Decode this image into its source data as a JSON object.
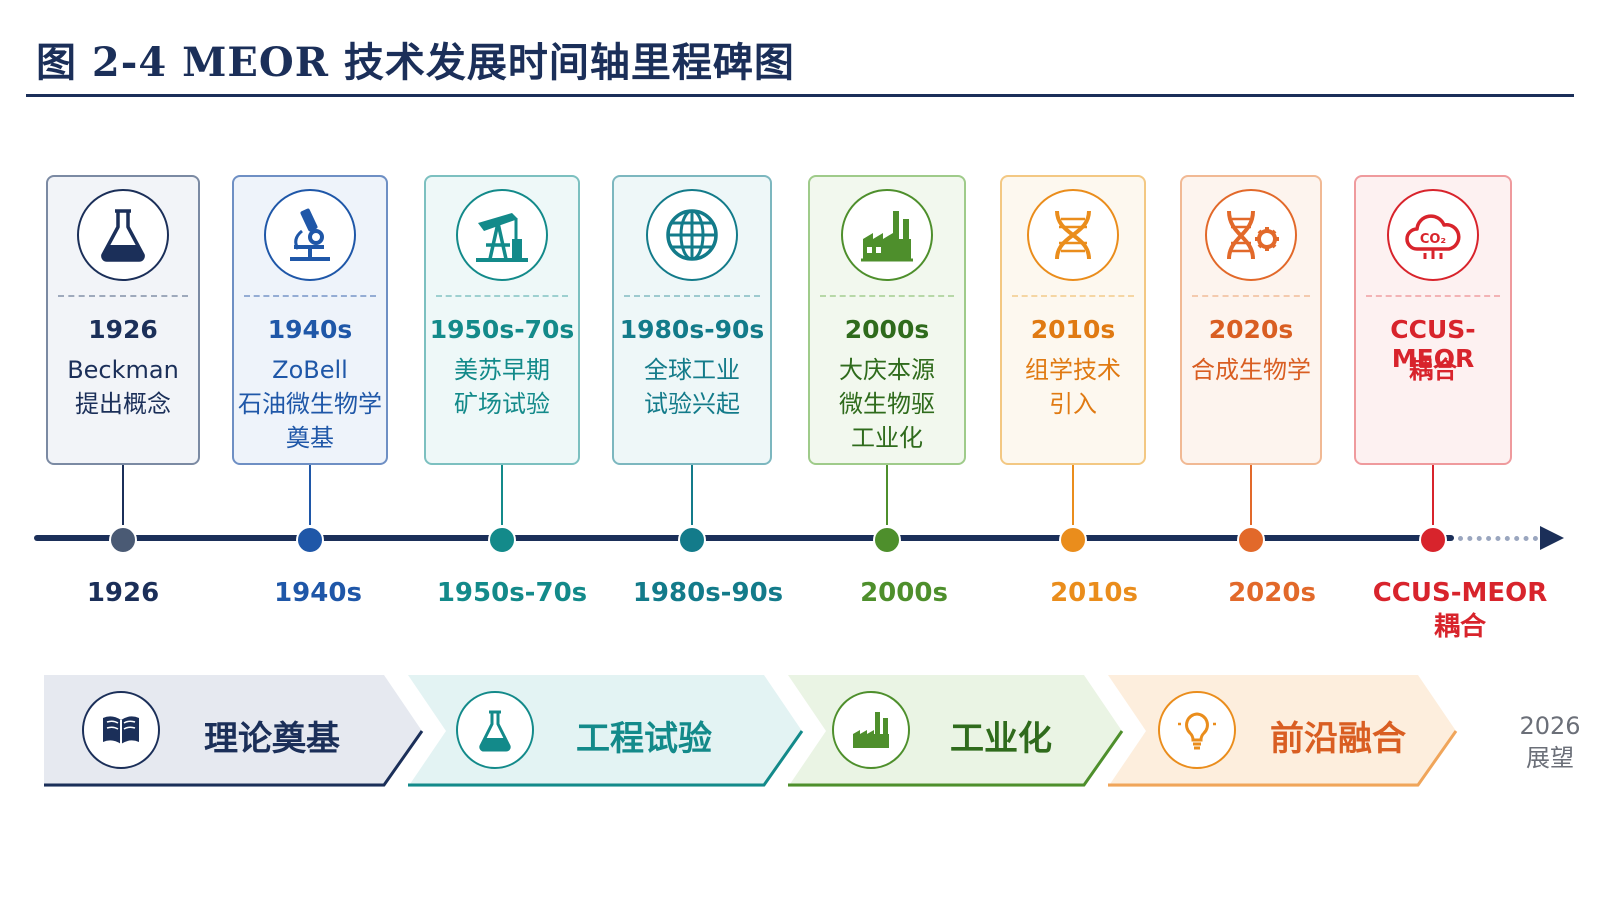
{
  "title": "图 2-4  MEOR 技术发展时间轴里程碑图",
  "colors": {
    "navy": "#1b2f59",
    "blue": "#1f57a8",
    "teal": "#138a8a",
    "teal2": "#137b8a",
    "green": "#4e8f2c",
    "orange": "#ea8d1c",
    "deep_orange": "#e2692a",
    "red": "#d8242c"
  },
  "milestones": [
    {
      "year": "1926",
      "desc": "Beckman\n提出概念",
      "axis_label": "1926",
      "icon": "flask-icon"
    },
    {
      "year": "1940s",
      "desc": "ZoBell\n石油微生物学\n奠基",
      "axis_label": "1940s",
      "icon": "microscope-icon"
    },
    {
      "year": "1950s-70s",
      "desc": "美苏早期\n矿场试验",
      "axis_label": "1950s-70s",
      "icon": "oil-pump-icon"
    },
    {
      "year": "1980s-90s",
      "desc": "全球工业\n试验兴起",
      "axis_label": "1980s-90s",
      "icon": "globe-icon"
    },
    {
      "year": "2000s",
      "desc": "大庆本源\n微生物驱\n工业化",
      "axis_label": "2000s",
      "icon": "factory-icon"
    },
    {
      "year": "2010s",
      "desc": "组学技术\n引入",
      "axis_label": "2010s",
      "icon": "dna-icon"
    },
    {
      "year": "2020s",
      "desc": "合成生物学",
      "axis_label": "2020s",
      "icon": "dna-gear-icon"
    },
    {
      "year": "CCUS-MEOR",
      "desc": "耦合",
      "axis_label": "CCUS-MEOR\n耦合",
      "icon": "co2-cloud-icon"
    }
  ],
  "phases": [
    {
      "label": "理论奠基",
      "icon": "book-icon"
    },
    {
      "label": "工程试验",
      "icon": "flask-icon"
    },
    {
      "label": "工业化",
      "icon": "factory-icon"
    },
    {
      "label": "前沿融合",
      "icon": "lightbulb-icon"
    }
  ],
  "outlook": "2026\n展望",
  "co2_text": "CO₂"
}
